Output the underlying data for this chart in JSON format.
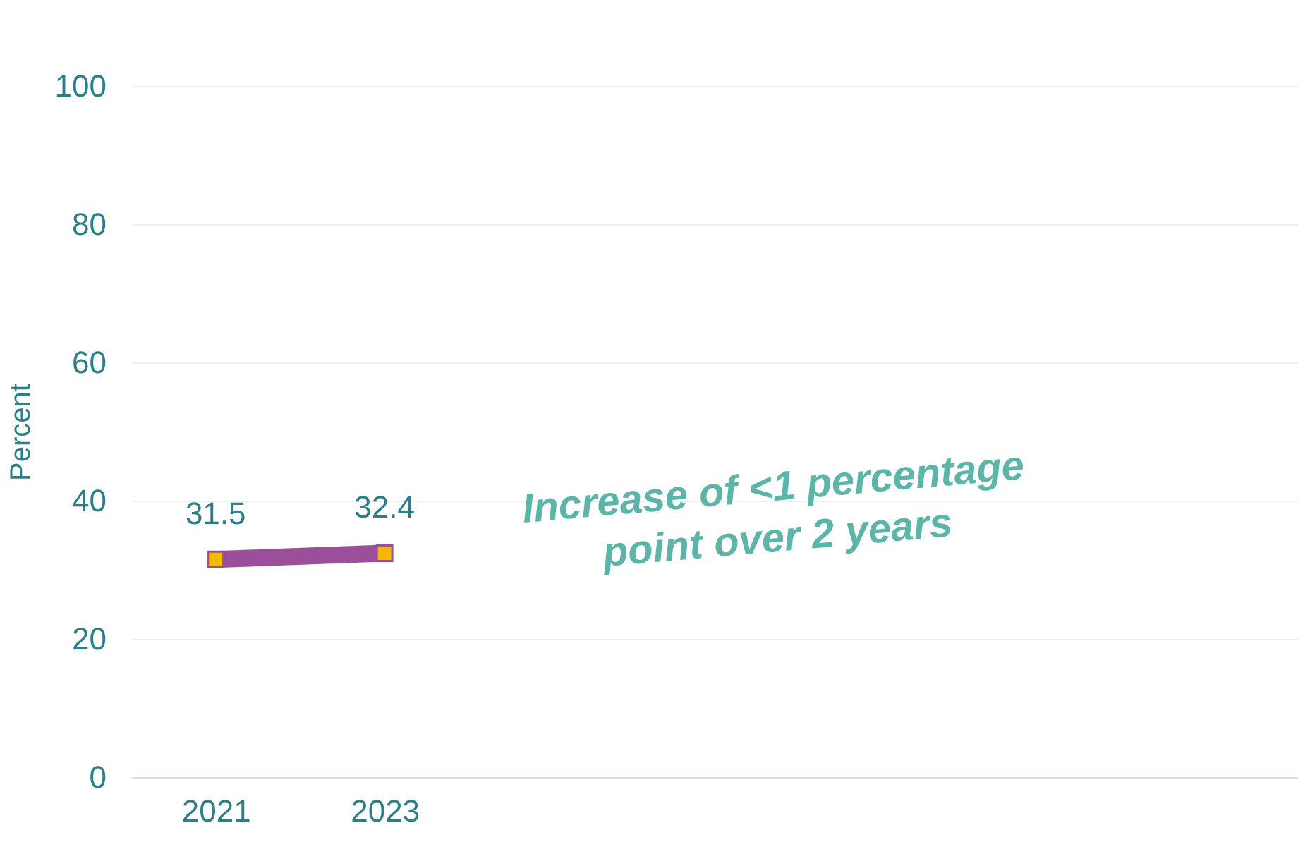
{
  "chart_data": {
    "type": "line",
    "ylabel": "Percent",
    "categories": [
      "2021",
      "2023",
      null,
      null,
      null,
      null,
      null
    ],
    "series": [
      {
        "color": "#9b4f9b",
        "values": [
          31.5,
          32.4,
          null,
          null,
          null,
          null,
          null
        ]
      }
    ],
    "ylim": [
      0,
      100
    ],
    "yticks": [
      0,
      20,
      40,
      60,
      80,
      100
    ],
    "grid": "y",
    "marker": "square",
    "data_labels": true,
    "line_style": "solid",
    "annotations": [
      "Increase of <1 percentage point over 2 years"
    ]
  }
}
